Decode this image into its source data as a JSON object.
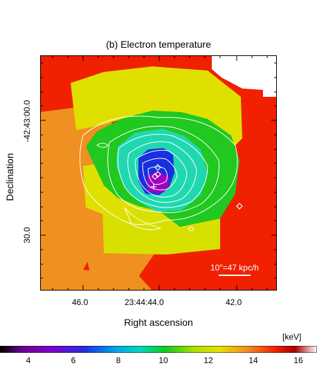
{
  "figure": {
    "title": "(b) Electron temperature",
    "xlabel": "Right ascension",
    "ylabel": "Declination",
    "x_ticks": [
      "46.0",
      "23:44:44.0",
      "42.0"
    ],
    "y_ticks": [
      "-42:43:00.0",
      "30.0"
    ],
    "scalebar_label": "10\"=47 kpc/h",
    "colorbar_unit": "[keV]",
    "colorbar_ticks": [
      "4",
      "6",
      "8",
      "10",
      "12",
      "14",
      "16"
    ],
    "colorbar_range": [
      2.5,
      16.5
    ]
  },
  "chart_data": {
    "type": "heatmap",
    "title": "(b) Electron temperature",
    "xlabel": "Right ascension",
    "ylabel": "Declination",
    "x_ticks": [
      "46.0",
      "23:44:44.0",
      "42.0"
    ],
    "y_ticks": [
      "-42:43:00.0",
      "30.0"
    ],
    "colorbar": {
      "label": "[keV]",
      "min": 2.5,
      "max": 16.5,
      "ticks": [
        4,
        6,
        8,
        10,
        12,
        14,
        16
      ]
    },
    "regions_keV_approx": [
      {
        "region": "outer east",
        "value": 13.0
      },
      {
        "region": "outer north-west",
        "value": 15.0
      },
      {
        "region": "outer south",
        "value": 15.0
      },
      {
        "region": "north arc",
        "value": 12.0
      },
      {
        "region": "south-west shell",
        "value": 10.5
      },
      {
        "region": "middle ring",
        "value": 8.8
      },
      {
        "region": "inner ring",
        "value": 7.8
      },
      {
        "region": "core",
        "value": 5.0
      },
      {
        "region": "centre",
        "value": 3.3
      }
    ],
    "grid": false,
    "colors": {
      "red": "#f02000",
      "orange": "#f09020",
      "yellow": "#e0e000",
      "yellowgreen": "#b8e000",
      "green": "#20c820",
      "cyan": "#20d8b0",
      "blue": "#1830e0",
      "purple": "#a000c0"
    }
  }
}
